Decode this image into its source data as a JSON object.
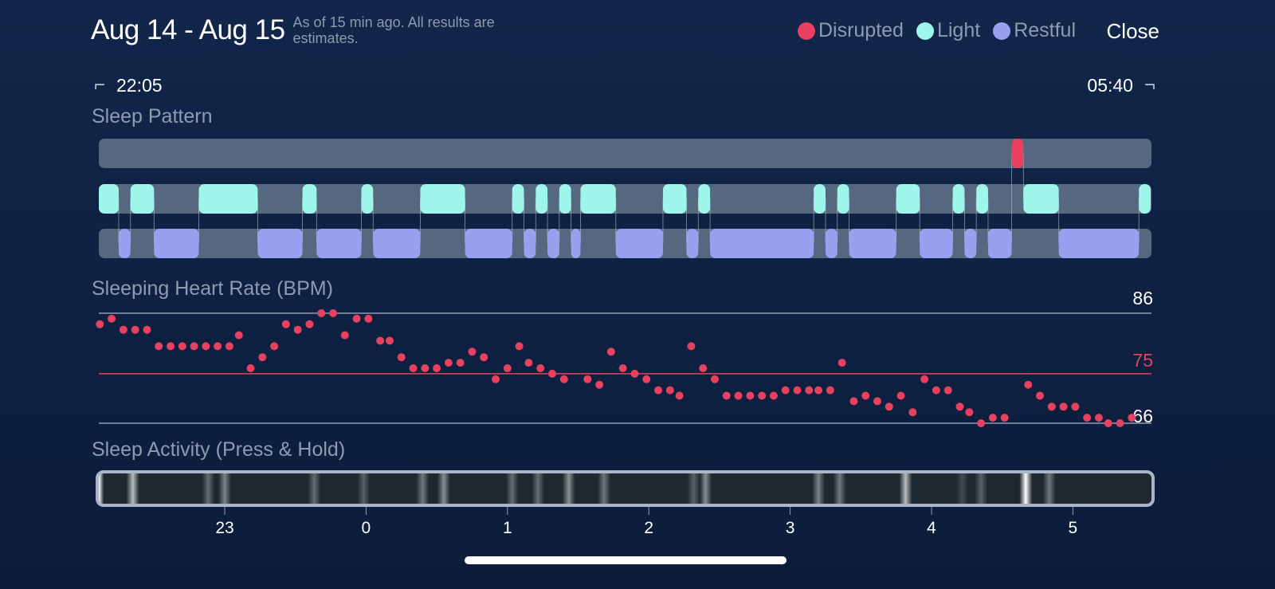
{
  "header": {
    "title": "Aug 14 - Aug 15",
    "subtitle": "As of 15 min ago. All results are estimates.",
    "close_label": "Close",
    "legend": [
      {
        "label": "Disrupted",
        "color": "#e8405f"
      },
      {
        "label": "Light",
        "color": "#9ef5ea"
      },
      {
        "label": "Restful",
        "color": "#9aa0f0"
      }
    ]
  },
  "range": {
    "start": "22:05",
    "end": "05:40",
    "start_icon": "bracket-start-icon",
    "end_icon": "bracket-end-icon"
  },
  "sections": {
    "pattern": "Sleep Pattern",
    "heart_rate": "Sleeping Heart Rate (BPM)",
    "activity": "Sleep Activity (Press & Hold)"
  },
  "colors": {
    "track": "#566880",
    "disrupted": "#e8405f",
    "light": "#9ef5ea",
    "restful": "#9aa0f0",
    "grid": "#8e9bb0"
  },
  "chart_data": [
    {
      "type": "timeline",
      "title": "Sleep Pattern",
      "rows": [
        "Disrupted",
        "Light",
        "Restful"
      ],
      "segments": [
        [
          "Light",
          "22:05",
          "22:15"
        ],
        [
          "Restful",
          "22:15",
          "22:20"
        ],
        [
          "Light",
          "22:20",
          "22:30"
        ],
        [
          "Restful",
          "22:30",
          "22:49"
        ],
        [
          "Light",
          "22:49",
          "23:14"
        ],
        [
          "Restful",
          "23:14",
          "23:33"
        ],
        [
          "Light",
          "23:33",
          "23:39"
        ],
        [
          "Restful",
          "23:39",
          "23:58"
        ],
        [
          "Light",
          "23:58",
          "00:03"
        ],
        [
          "Restful",
          "00:03",
          "00:23"
        ],
        [
          "Light",
          "00:23",
          "00:42"
        ],
        [
          "Restful",
          "00:42",
          "01:02"
        ],
        [
          "Light",
          "01:02",
          "01:07"
        ],
        [
          "Restful",
          "01:07",
          "01:12"
        ],
        [
          "Light",
          "01:12",
          "01:17"
        ],
        [
          "Restful",
          "01:17",
          "01:22"
        ],
        [
          "Light",
          "01:22",
          "01:27"
        ],
        [
          "Restful",
          "01:27",
          "01:31"
        ],
        [
          "Light",
          "01:31",
          "01:46"
        ],
        [
          "Restful",
          "01:46",
          "02:06"
        ],
        [
          "Light",
          "02:06",
          "02:16"
        ],
        [
          "Restful",
          "02:16",
          "02:21"
        ],
        [
          "Light",
          "02:21",
          "02:26"
        ],
        [
          "Restful",
          "02:26",
          "03:10"
        ],
        [
          "Light",
          "03:10",
          "03:15"
        ],
        [
          "Restful",
          "03:15",
          "03:20"
        ],
        [
          "Light",
          "03:20",
          "03:25"
        ],
        [
          "Restful",
          "03:25",
          "03:45"
        ],
        [
          "Light",
          "03:45",
          "03:55"
        ],
        [
          "Restful",
          "03:55",
          "04:09"
        ],
        [
          "Light",
          "04:09",
          "04:14"
        ],
        [
          "Restful",
          "04:14",
          "04:19"
        ],
        [
          "Light",
          "04:19",
          "04:24"
        ],
        [
          "Restful",
          "04:24",
          "04:34"
        ],
        [
          "Disrupted",
          "04:34",
          "04:39"
        ],
        [
          "Light",
          "04:39",
          "04:54"
        ],
        [
          "Restful",
          "04:54",
          "05:28"
        ],
        [
          "Light",
          "05:28",
          "05:33"
        ]
      ]
    },
    {
      "type": "scatter",
      "title": "Sleeping Heart Rate (BPM)",
      "ylim": [
        66,
        86
      ],
      "reference_lines": [
        {
          "value": 86,
          "label": "86"
        },
        {
          "value": 75,
          "label": "75",
          "color": "#e8405f"
        },
        {
          "value": 66,
          "label": "66"
        }
      ],
      "points": [
        [
          "22:07",
          84
        ],
        [
          "22:12",
          85
        ],
        [
          "22:17",
          83
        ],
        [
          "22:22",
          83
        ],
        [
          "22:27",
          83
        ],
        [
          "22:32",
          80
        ],
        [
          "22:37",
          80
        ],
        [
          "22:42",
          80
        ],
        [
          "22:47",
          80
        ],
        [
          "22:52",
          80
        ],
        [
          "22:57",
          80
        ],
        [
          "23:02",
          80
        ],
        [
          "23:06",
          82
        ],
        [
          "23:11",
          76
        ],
        [
          "23:16",
          78
        ],
        [
          "23:21",
          80
        ],
        [
          "23:26",
          84
        ],
        [
          "23:31",
          83
        ],
        [
          "23:36",
          84
        ],
        [
          "23:41",
          86
        ],
        [
          "23:46",
          86
        ],
        [
          "23:51",
          82
        ],
        [
          "23:56",
          85
        ],
        [
          "00:01",
          85
        ],
        [
          "00:06",
          81
        ],
        [
          "00:10",
          81
        ],
        [
          "00:15",
          78
        ],
        [
          "00:20",
          76
        ],
        [
          "00:25",
          76
        ],
        [
          "00:30",
          76
        ],
        [
          "00:35",
          77
        ],
        [
          "00:40",
          77
        ],
        [
          "00:45",
          79
        ],
        [
          "00:50",
          78
        ],
        [
          "00:55",
          74
        ],
        [
          "01:00",
          76
        ],
        [
          "01:05",
          80
        ],
        [
          "01:09",
          77
        ],
        [
          "01:14",
          76
        ],
        [
          "01:19",
          75
        ],
        [
          "01:24",
          74
        ],
        [
          "01:34",
          74
        ],
        [
          "01:39",
          73
        ],
        [
          "01:44",
          79
        ],
        [
          "01:49",
          76
        ],
        [
          "01:54",
          75
        ],
        [
          "01:59",
          74
        ],
        [
          "02:04",
          72
        ],
        [
          "02:09",
          72
        ],
        [
          "02:13",
          71
        ],
        [
          "02:18",
          80
        ],
        [
          "02:23",
          76
        ],
        [
          "02:28",
          74
        ],
        [
          "02:33",
          71
        ],
        [
          "02:38",
          71
        ],
        [
          "02:43",
          71
        ],
        [
          "02:48",
          71
        ],
        [
          "02:53",
          71
        ],
        [
          "02:58",
          72
        ],
        [
          "03:03",
          72
        ],
        [
          "03:08",
          72
        ],
        [
          "03:12",
          72
        ],
        [
          "03:17",
          72
        ],
        [
          "03:22",
          77
        ],
        [
          "03:27",
          70
        ],
        [
          "03:32",
          71
        ],
        [
          "03:37",
          70
        ],
        [
          "03:42",
          69
        ],
        [
          "03:47",
          71
        ],
        [
          "03:52",
          68
        ],
        [
          "03:57",
          74
        ],
        [
          "04:02",
          72
        ],
        [
          "04:07",
          72
        ],
        [
          "04:12",
          69
        ],
        [
          "04:16",
          68
        ],
        [
          "04:21",
          66
        ],
        [
          "04:26",
          67
        ],
        [
          "04:31",
          67
        ],
        [
          "04:41",
          73
        ],
        [
          "04:46",
          71
        ],
        [
          "04:51",
          69
        ],
        [
          "04:56",
          69
        ],
        [
          "05:01",
          69
        ],
        [
          "05:06",
          67
        ],
        [
          "05:11",
          67
        ],
        [
          "05:15",
          66
        ],
        [
          "05:20",
          66
        ],
        [
          "05:25",
          67
        ]
      ]
    },
    {
      "type": "heatmap",
      "title": "Sleep Activity (Press & Hold)",
      "activity_peaks": [
        [
          "22:06",
          1.0
        ],
        [
          "22:21",
          0.7
        ],
        [
          "22:53",
          0.35
        ],
        [
          "23:00",
          0.45
        ],
        [
          "23:38",
          0.35
        ],
        [
          "23:59",
          0.3
        ],
        [
          "00:24",
          0.4
        ],
        [
          "00:33",
          0.5
        ],
        [
          "01:02",
          0.35
        ],
        [
          "01:13",
          0.35
        ],
        [
          "01:26",
          0.5
        ],
        [
          "01:41",
          0.4
        ],
        [
          "02:19",
          0.3
        ],
        [
          "02:24",
          0.5
        ],
        [
          "03:12",
          0.45
        ],
        [
          "03:21",
          0.4
        ],
        [
          "03:49",
          0.7
        ],
        [
          "04:13",
          0.2
        ],
        [
          "04:21",
          0.3
        ],
        [
          "04:40",
          1.0
        ],
        [
          "04:50",
          0.4
        ]
      ],
      "x_ticks": [
        "23",
        "0",
        "1",
        "2",
        "3",
        "4",
        "5"
      ]
    }
  ]
}
